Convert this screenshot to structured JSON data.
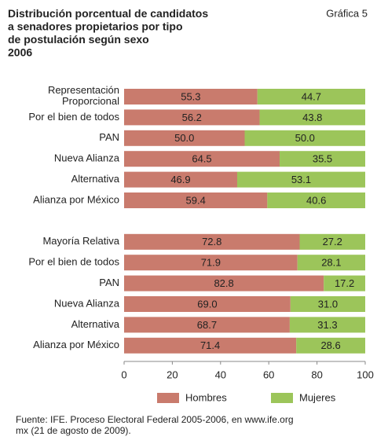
{
  "chart_data": {
    "type": "stacked_barh",
    "title": "Distribución porcentual de candidatos\na senadores propietarios por tipo\nde postulación según  sexo\n2006",
    "annotation": "Gráfica 5",
    "source": "Fuente: IFE. Proceso Electoral Federal 2005-2006, en www.ife.org\nmx (21 de agosto de 2009).",
    "categories": [
      "Representación\nProporcional",
      "Por el bien de todos",
      "PAN",
      "Nueva Alianza",
      "Alternativa",
      "Alianza por México",
      null,
      "Mayoría Relativa",
      "Por el bien de todos",
      "PAN",
      "Nueva Alianza",
      "Alternativa",
      "Alianza por México"
    ],
    "series": [
      {
        "name": "Hombres",
        "color": "#c97b6d",
        "values": [
          55.3,
          56.2,
          50.0,
          64.5,
          46.9,
          59.4,
          null,
          72.8,
          71.9,
          82.8,
          69.0,
          68.7,
          71.4
        ],
        "value_labels": [
          "55.3",
          "56.2",
          "50.0",
          "64.5",
          "46.9",
          "59.4",
          null,
          "72.8",
          "71.9",
          "82.8",
          "69.0",
          "68.7",
          "71.4"
        ]
      },
      {
        "name": "Mujeres",
        "color": "#9cc55a",
        "values": [
          44.7,
          43.8,
          50.0,
          35.5,
          53.1,
          40.6,
          null,
          27.2,
          28.1,
          17.2,
          31.0,
          31.3,
          28.6
        ],
        "value_labels": [
          "44.7",
          "43.8",
          "50.0",
          "35.5",
          "53.1",
          "40.6",
          null,
          "27.2",
          "28.1",
          "17.2",
          "31.0",
          "31.3",
          "28.6"
        ]
      }
    ],
    "xlim": [
      0,
      100
    ],
    "xticks": [
      0,
      20,
      40,
      60,
      80,
      100
    ],
    "legend": "bottom"
  }
}
